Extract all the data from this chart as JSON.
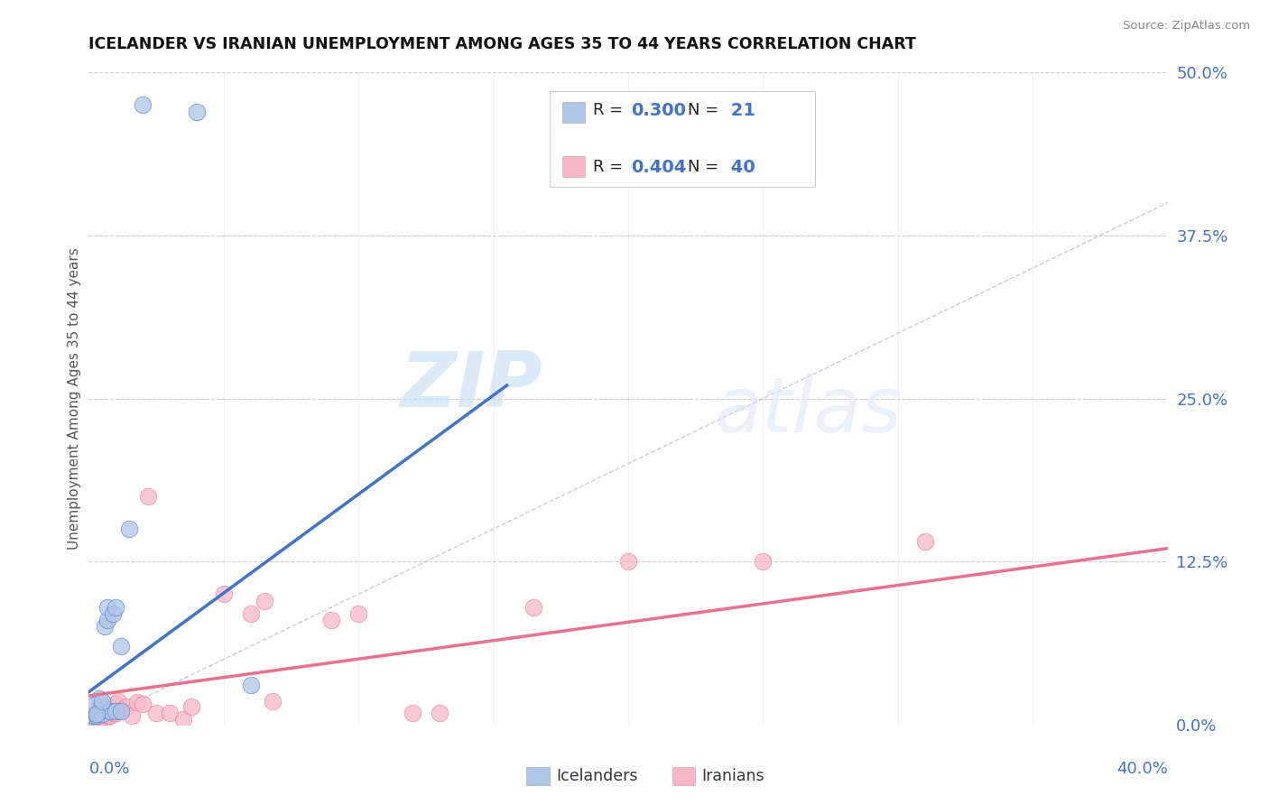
{
  "title": "ICELANDER VS IRANIAN UNEMPLOYMENT AMONG AGES 35 TO 44 YEARS CORRELATION CHART",
  "source": "Source: ZipAtlas.com",
  "ylabel": "Unemployment Among Ages 35 to 44 years",
  "xlim": [
    0.0,
    0.4
  ],
  "ylim": [
    0.0,
    0.5
  ],
  "y_ticks": [
    0.0,
    0.125,
    0.25,
    0.375,
    0.5
  ],
  "y_tick_labels_right": [
    "0.0%",
    "12.5%",
    "25.0%",
    "37.5%",
    "50.0%"
  ],
  "grid_color": "#cccccc",
  "background_color": "#ffffff",
  "watermark_zip": "ZIP",
  "watermark_atlas": "atlas",
  "icelanders_color": "#aec6e8",
  "iranians_color": "#f5b8c8",
  "icelander_line_color": "#4472c4",
  "iranian_line_color": "#e87090",
  "diagonal_color": "#c0c0c0",
  "R_ice": 0.3,
  "N_ice": 21,
  "R_iran": 0.404,
  "N_iran": 40,
  "icelanders_x": [
    0.02,
    0.04,
    0.002,
    0.003,
    0.004,
    0.004,
    0.005,
    0.006,
    0.007,
    0.008,
    0.01,
    0.012,
    0.015,
    0.002,
    0.003,
    0.005,
    0.007,
    0.009,
    0.01,
    0.012,
    0.06
  ],
  "icelanders_y": [
    0.475,
    0.47,
    0.007,
    0.007,
    0.01,
    0.02,
    0.008,
    0.075,
    0.08,
    0.01,
    0.01,
    0.01,
    0.15,
    0.015,
    0.008,
    0.018,
    0.09,
    0.085,
    0.09,
    0.06,
    0.03
  ],
  "iranians_x": [
    0.001,
    0.002,
    0.002,
    0.003,
    0.003,
    0.004,
    0.004,
    0.005,
    0.005,
    0.006,
    0.006,
    0.007,
    0.007,
    0.008,
    0.009,
    0.01,
    0.01,
    0.011,
    0.012,
    0.014,
    0.016,
    0.018,
    0.02,
    0.022,
    0.025,
    0.03,
    0.035,
    0.038,
    0.05,
    0.06,
    0.065,
    0.068,
    0.09,
    0.1,
    0.12,
    0.13,
    0.165,
    0.2,
    0.25,
    0.31
  ],
  "iranians_y": [
    0.005,
    0.005,
    0.008,
    0.004,
    0.01,
    0.004,
    0.012,
    0.006,
    0.01,
    0.004,
    0.014,
    0.007,
    0.011,
    0.007,
    0.009,
    0.009,
    0.016,
    0.018,
    0.011,
    0.014,
    0.007,
    0.017,
    0.016,
    0.175,
    0.009,
    0.009,
    0.004,
    0.014,
    0.1,
    0.085,
    0.095,
    0.018,
    0.08,
    0.085,
    0.009,
    0.009,
    0.09,
    0.125,
    0.125,
    0.14
  ],
  "ice_line_x": [
    0.0,
    0.155
  ],
  "ice_line_y": [
    0.025,
    0.26
  ],
  "iran_line_x": [
    0.0,
    0.4
  ],
  "iran_line_y": [
    0.022,
    0.135
  ]
}
